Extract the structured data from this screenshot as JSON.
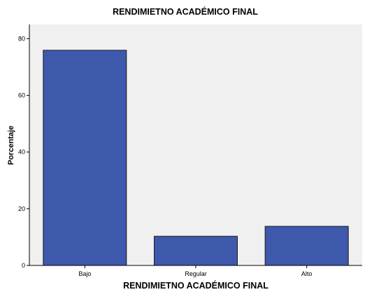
{
  "chart_data": {
    "type": "bar",
    "title": "RENDIMIETNO ACADÉMICO FINAL",
    "xlabel": "RENDIMIETNO ACADÉMICO FINAL",
    "ylabel": "Porcentaje",
    "categories": [
      "Bajo",
      "Regular",
      "Alto"
    ],
    "values": [
      75.9,
      10.3,
      13.8
    ],
    "ylim": [
      0,
      85
    ],
    "yticks": [
      0,
      20,
      40,
      60,
      80
    ],
    "grid": false,
    "colors": {
      "bar_fill": "#3e58ac",
      "bar_stroke": "#1c1c1c",
      "plot_background": "#f0f0f0",
      "axis": "#000000"
    }
  }
}
